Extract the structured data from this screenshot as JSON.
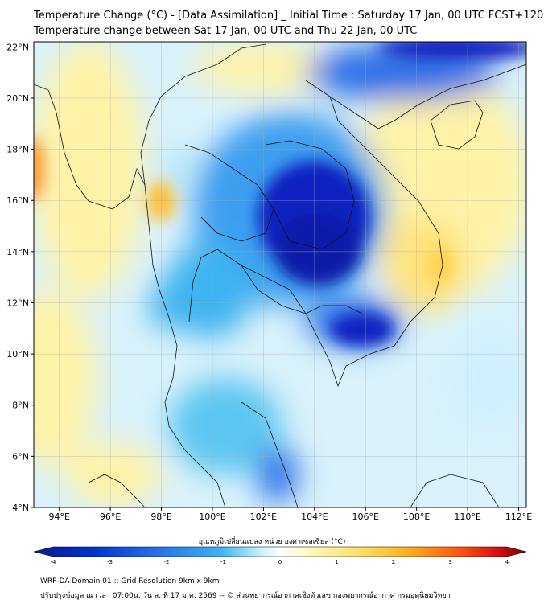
{
  "title_line1": "Temperature Change (°C) - [Data Assimilation] _ Initial Time : Saturday 17 Jan, 00 UTC FCST+120",
  "title_line2": "Temperature change between Sat 17 Jan, 00 UTC and Thu 22 Jan, 00 UTC",
  "lat_ticks": [
    {
      "v": 22,
      "label": "22°N"
    },
    {
      "v": 20,
      "label": "20°N"
    },
    {
      "v": 18,
      "label": "18°N"
    },
    {
      "v": 16,
      "label": "16°N"
    },
    {
      "v": 14,
      "label": "14°N"
    },
    {
      "v": 12,
      "label": "12°N"
    },
    {
      "v": 10,
      "label": "10°N"
    },
    {
      "v": 8,
      "label": "8°N"
    },
    {
      "v": 6,
      "label": "6°N"
    },
    {
      "v": 4,
      "label": "4°N"
    }
  ],
  "lon_ticks": [
    {
      "v": 94,
      "label": "94°E"
    },
    {
      "v": 96,
      "label": "96°E"
    },
    {
      "v": 98,
      "label": "98°E"
    },
    {
      "v": 100,
      "label": "100°E"
    },
    {
      "v": 102,
      "label": "102°E"
    },
    {
      "v": 104,
      "label": "104°E"
    },
    {
      "v": 106,
      "label": "106°E"
    },
    {
      "v": 108,
      "label": "108°E"
    },
    {
      "v": 110,
      "label": "110°E"
    },
    {
      "v": 112,
      "label": "112°E"
    }
  ],
  "map_extent": {
    "lon": [
      93,
      112.3
    ],
    "lat": [
      4,
      22.2
    ]
  },
  "colorbar": {
    "title": "อุณหภูมิเปลี่ยนแปลง หน่วย องศาเซลเซียส (°C)",
    "range": [
      -4,
      4
    ],
    "ticks": [
      "-4",
      "-3",
      "-2",
      "-1",
      "0",
      "1",
      "2",
      "3",
      "4"
    ],
    "colors": [
      "#0a1a8c",
      "#0033cc",
      "#2a6ee8",
      "#3cb4f0",
      "#c8f0ff",
      "#ffffff",
      "#fff7c0",
      "#ffe066",
      "#ffb020",
      "#ff5a10",
      "#d81010",
      "#7a0000"
    ]
  },
  "footer_line1": "WRF-DA Domain 01 :: Grid Resolution 9km x 9km",
  "footer_line2": "ปรับปรุงข้อมูล ณ เวลา 07:00น. วัน ส. ที่ 17 ม.ค. 2569 -- © ส่วนพยากรณ์อากาศเชิงตัวเลข กองพยากรณ์อากาศ กรมอุตุนิยมวิทยา"
}
